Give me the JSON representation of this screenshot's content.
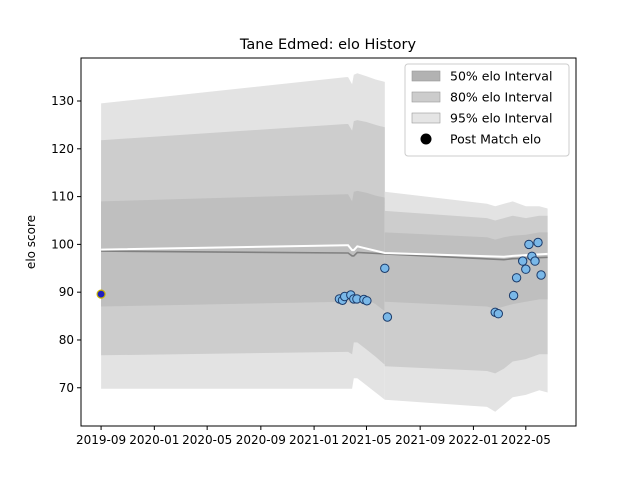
{
  "chart_data": {
    "type": "line",
    "title": "Tane Edmed: elo History",
    "xlabel": "",
    "ylabel": "elo score",
    "xlim": [
      "2019-07-17",
      "2022-08-24"
    ],
    "ylim": [
      62,
      139
    ],
    "yticks": [
      70,
      80,
      90,
      100,
      110,
      120,
      130
    ],
    "xticks": [
      "2019-09",
      "2020-01",
      "2020-05",
      "2020-09",
      "2021-01",
      "2021-05",
      "2021-09",
      "2022-01",
      "2022-05"
    ],
    "grid": false,
    "legend_position": "top-right",
    "legend": [
      {
        "label": "50% elo Interval",
        "color": "#b2b2b2"
      },
      {
        "label": "80% elo Interval",
        "color": "#cccccc"
      },
      {
        "label": "95% elo Interval",
        "color": "#e5e5e5"
      },
      {
        "label": "Post Match elo",
        "color": "#000000"
      }
    ],
    "colors": {
      "band95": "#e3e3e3",
      "band80": "#cdcdcd",
      "band50": "#bfbfbf",
      "mean_line": "#808080",
      "white_line": "#ffffff",
      "point_fill": "#7ab8e8",
      "point_edge": "#1a3a6a",
      "first_point_fill": "#1f1fbf",
      "first_point_edge": "#c8b400"
    },
    "bands_segment1": {
      "x": [
        "2019-09-01",
        "2021-03-15",
        "2021-03-20",
        "2021-03-29",
        "2021-04-02",
        "2021-04-10",
        "2021-05-01",
        "2021-05-22",
        "2021-06-12"
      ],
      "band95_hi": [
        129.5,
        135.0,
        135.0,
        133.5,
        135.5,
        135.8,
        135.2,
        134.5,
        134.0
      ],
      "band95_lo": [
        69.8,
        69.8,
        69.8,
        69.8,
        72.0,
        72.0,
        70.5,
        69.0,
        67.5
      ],
      "band80_hi": [
        121.8,
        125.2,
        125.2,
        123.8,
        125.8,
        126.0,
        125.6,
        125.0,
        124.5
      ],
      "band80_lo": [
        76.8,
        77.5,
        77.5,
        77.0,
        79.5,
        79.5,
        78.0,
        76.5,
        74.8
      ],
      "band50_hi": [
        109.0,
        110.5,
        110.5,
        109.0,
        111.0,
        111.2,
        110.8,
        110.2,
        109.8
      ],
      "band50_lo": [
        87.0,
        88.0,
        88.0,
        87.5,
        89.5,
        89.5,
        88.5,
        87.5,
        86.0
      ]
    },
    "bands_segment2": {
      "x": [
        "2021-06-12",
        "2022-02-01",
        "2022-02-20",
        "2022-03-12",
        "2022-04-01",
        "2022-05-01",
        "2022-06-01",
        "2022-06-20"
      ],
      "band95_hi": [
        111.0,
        108.5,
        108.0,
        108.5,
        109.0,
        108.0,
        108.0,
        107.5
      ],
      "band95_lo": [
        67.5,
        66.0,
        65.0,
        66.5,
        68.0,
        68.5,
        69.5,
        69.0
      ],
      "band80_hi": [
        107.0,
        105.5,
        105.0,
        105.5,
        106.0,
        105.5,
        106.0,
        106.0
      ],
      "band80_lo": [
        74.5,
        73.5,
        73.0,
        74.0,
        75.5,
        76.0,
        77.0,
        77.0
      ],
      "band50_hi": [
        102.5,
        101.5,
        101.0,
        101.5,
        101.8,
        102.0,
        102.5,
        102.5
      ],
      "band50_lo": [
        88.0,
        87.0,
        86.5,
        87.0,
        87.5,
        88.0,
        88.5,
        88.5
      ]
    },
    "mean_line": {
      "x": [
        "2019-09-01",
        "2021-03-15",
        "2021-03-20",
        "2021-03-29",
        "2021-04-02",
        "2021-04-10",
        "2021-06-12",
        "2022-03-12",
        "2022-04-01",
        "2022-06-20"
      ],
      "y": [
        98.6,
        98.2,
        98.2,
        97.6,
        97.6,
        98.3,
        98.0,
        96.8,
        97.0,
        97.3
      ]
    },
    "white_line": {
      "x": [
        "2019-09-01",
        "2021-03-15",
        "2021-03-20",
        "2021-03-29",
        "2021-04-02",
        "2021-04-10",
        "2021-06-12",
        "2022-03-12",
        "2022-04-01",
        "2022-06-20"
      ],
      "y": [
        98.9,
        99.8,
        99.8,
        98.8,
        98.8,
        99.6,
        98.2,
        97.4,
        97.6,
        98.0
      ]
    },
    "points": {
      "x": [
        "2021-02-28",
        "2021-03-07",
        "2021-03-12",
        "2021-03-26",
        "2021-04-02",
        "2021-04-09",
        "2021-04-25",
        "2021-05-02",
        "2021-06-12",
        "2021-06-18",
        "2022-02-20",
        "2022-02-27",
        "2022-04-03",
        "2022-04-10",
        "2022-04-24",
        "2022-05-01",
        "2022-05-08",
        "2022-05-15",
        "2022-05-22",
        "2022-05-29",
        "2022-06-05"
      ],
      "y": [
        88.6,
        88.3,
        89.1,
        89.4,
        88.6,
        88.6,
        88.5,
        88.2,
        95.0,
        84.8,
        85.8,
        85.5,
        89.3,
        93.0,
        96.5,
        94.8,
        100.0,
        97.5,
        96.5,
        100.4,
        93.6
      ],
      "first_point": {
        "x": "2019-09-01",
        "y": 89.6
      }
    }
  }
}
